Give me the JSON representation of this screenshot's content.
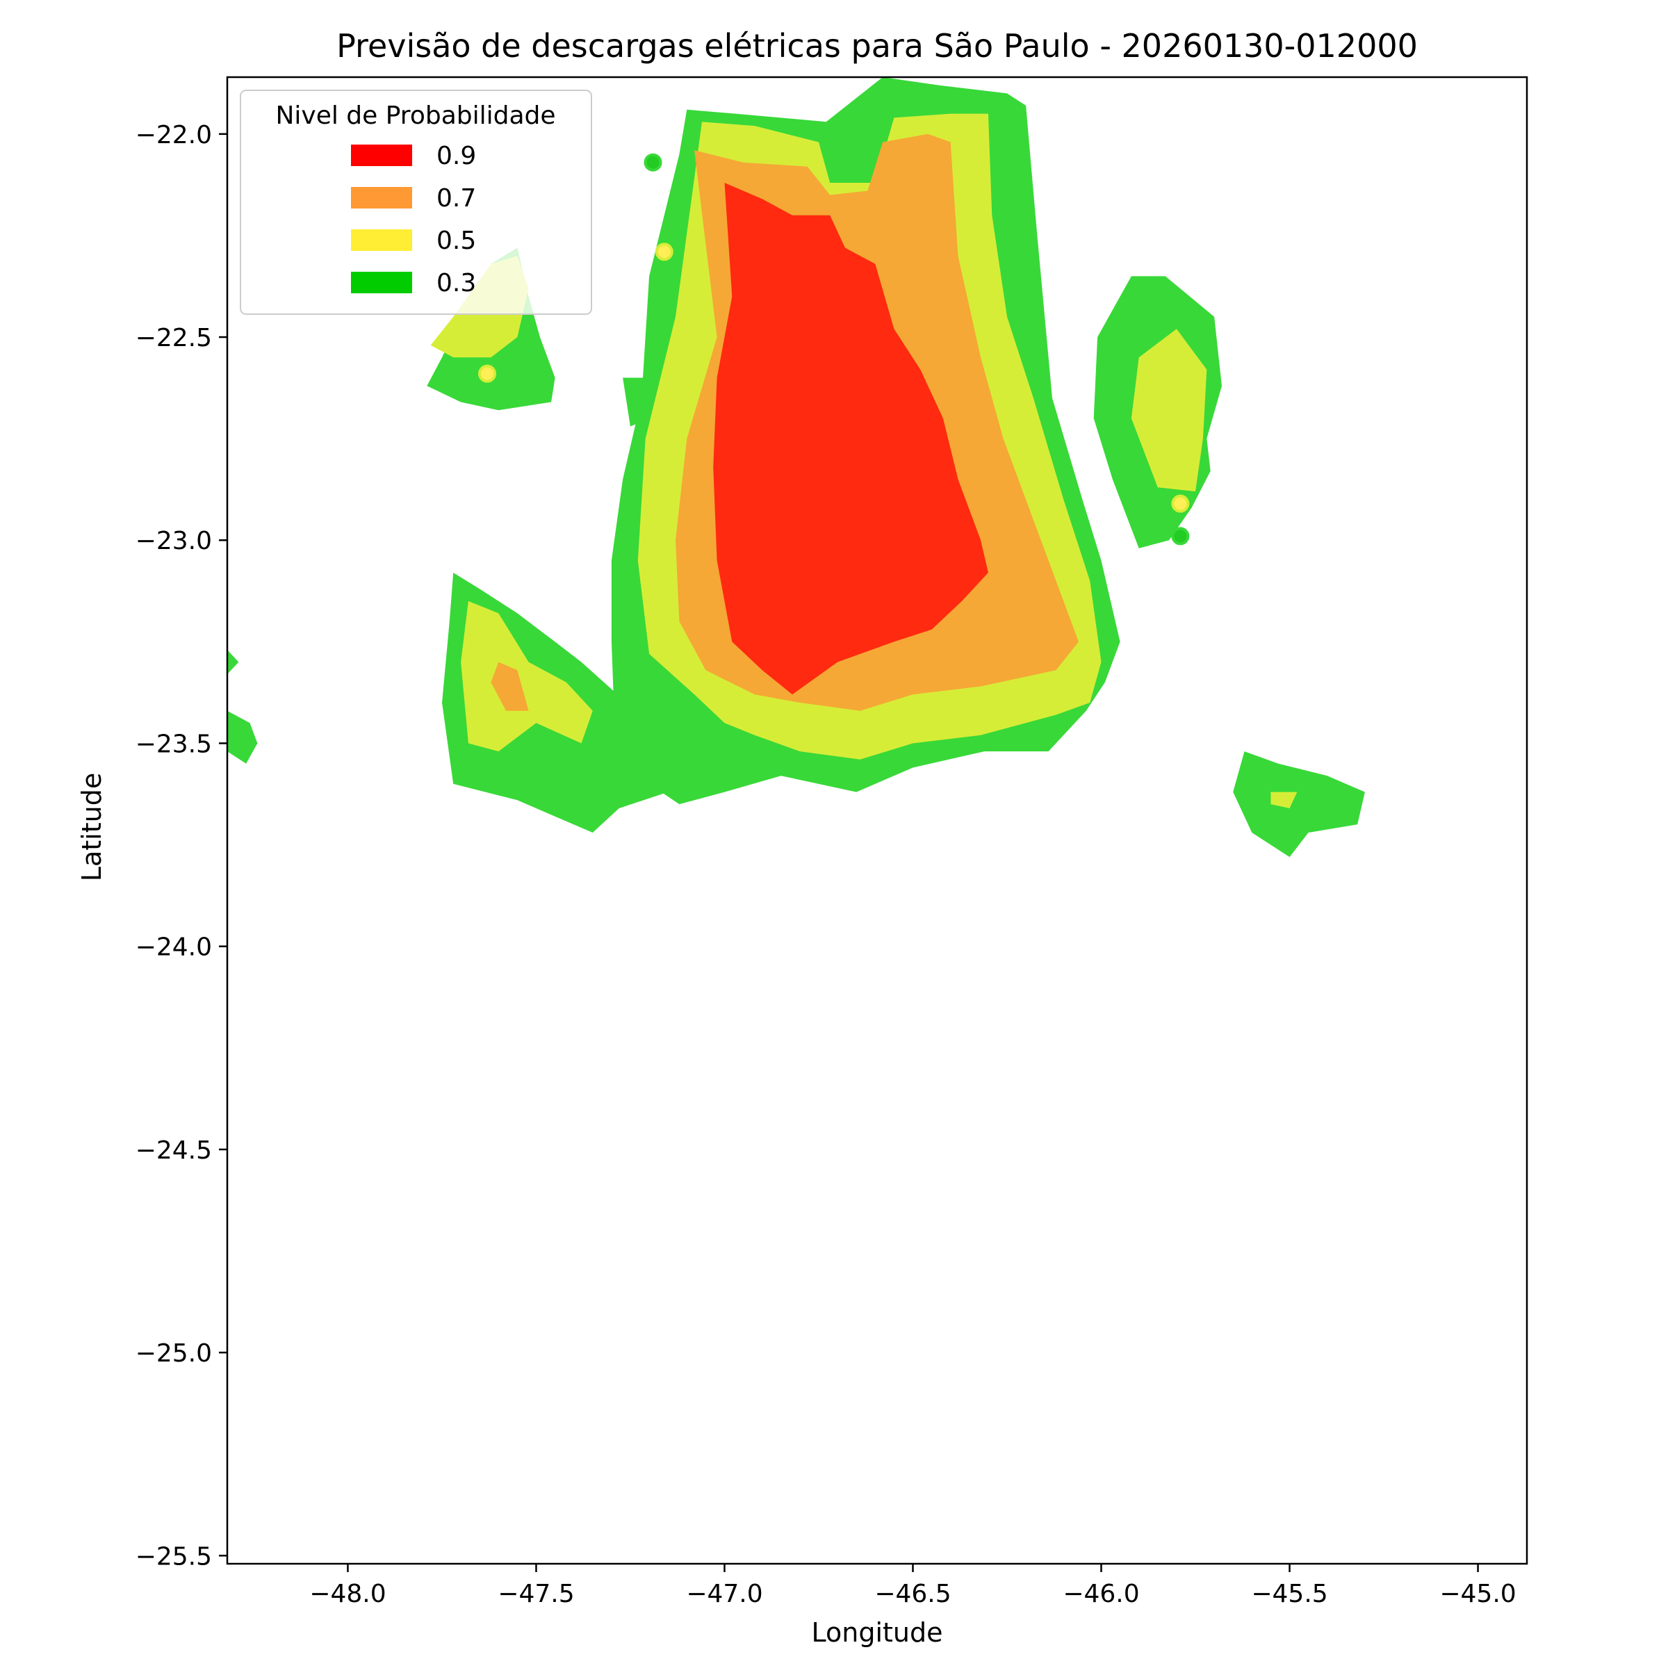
{
  "chart_data": {
    "type": "contour-map",
    "title": "Previsão de descargas elétricas para São Paulo - 20260130-012000",
    "xlabel": "Longitude",
    "ylabel": "Latitude",
    "xlim": [
      -48.32,
      -44.87
    ],
    "ylim": [
      -25.52,
      -21.86
    ],
    "xticks": [
      -48.0,
      -47.5,
      -47.0,
      -46.5,
      -46.0,
      -45.5,
      -45.0
    ],
    "xtick_labels": [
      "−48.0",
      "−47.5",
      "−47.0",
      "−46.5",
      "−46.0",
      "−45.5",
      "−45.0"
    ],
    "yticks": [
      -22.0,
      -22.5,
      -23.0,
      -23.5,
      -24.0,
      -24.5,
      -25.0,
      -25.5
    ],
    "ytick_labels": [
      "−22.0",
      "−22.5",
      "−23.0",
      "−23.5",
      "−24.0",
      "−24.5",
      "−25.0",
      "−25.5"
    ],
    "legend": {
      "title": "Nivel de Probabilidade",
      "placement": "top-left",
      "entries": [
        {
          "label": "0.9",
          "color": "#ff0000"
        },
        {
          "label": "0.7",
          "color": "#ff9933"
        },
        {
          "label": "0.5",
          "color": "#ffee33"
        },
        {
          "label": "0.3",
          "color": "#00cc00"
        }
      ]
    },
    "fill_colors": {
      "0.3": "#38d838",
      "0.5": "#d6ed38",
      "0.7": "#f5a835",
      "0.9": "#ff2a10"
    },
    "regions": [
      {
        "level": "0.3",
        "polygon": [
          [
            -47.12,
            -22.05
          ],
          [
            -47.1,
            -21.94
          ],
          [
            -46.97,
            -21.95
          ],
          [
            -46.73,
            -21.97
          ],
          [
            -46.58,
            -21.86
          ],
          [
            -46.43,
            -21.88
          ],
          [
            -46.25,
            -21.9
          ],
          [
            -46.2,
            -21.93
          ],
          [
            -46.17,
            -22.25
          ],
          [
            -46.13,
            -22.65
          ],
          [
            -46.05,
            -22.9
          ],
          [
            -46.0,
            -23.05
          ],
          [
            -45.95,
            -23.25
          ],
          [
            -45.99,
            -23.35
          ],
          [
            -46.04,
            -23.42
          ],
          [
            -46.14,
            -23.52
          ],
          [
            -46.31,
            -23.52
          ],
          [
            -46.5,
            -23.56
          ],
          [
            -46.65,
            -23.62
          ],
          [
            -46.85,
            -23.58
          ],
          [
            -47.0,
            -23.62
          ],
          [
            -47.12,
            -23.65
          ],
          [
            -47.2,
            -23.6
          ],
          [
            -47.28,
            -23.56
          ],
          [
            -47.29,
            -23.5
          ],
          [
            -47.3,
            -23.25
          ],
          [
            -47.3,
            -23.05
          ],
          [
            -47.27,
            -22.85
          ],
          [
            -47.22,
            -22.65
          ],
          [
            -47.2,
            -22.35
          ]
        ]
      },
      {
        "level": "0.3",
        "polygon": [
          [
            -46.01,
            -22.5
          ],
          [
            -45.92,
            -22.35
          ],
          [
            -45.83,
            -22.35
          ],
          [
            -45.7,
            -22.45
          ],
          [
            -45.68,
            -22.62
          ],
          [
            -45.72,
            -22.75
          ],
          [
            -45.71,
            -22.83
          ],
          [
            -45.76,
            -22.92
          ],
          [
            -45.82,
            -23.0
          ],
          [
            -45.9,
            -23.02
          ],
          [
            -45.97,
            -22.85
          ],
          [
            -46.02,
            -22.7
          ]
        ]
      },
      {
        "level": "0.3",
        "polygon": [
          [
            -47.79,
            -22.62
          ],
          [
            -47.75,
            -22.55
          ],
          [
            -47.7,
            -22.45
          ],
          [
            -47.62,
            -22.32
          ],
          [
            -47.55,
            -22.28
          ],
          [
            -47.52,
            -22.4
          ],
          [
            -47.49,
            -22.5
          ],
          [
            -47.45,
            -22.6
          ],
          [
            -47.46,
            -22.66
          ],
          [
            -47.6,
            -22.68
          ],
          [
            -47.7,
            -22.66
          ]
        ]
      },
      {
        "level": "0.3",
        "polygon": [
          [
            -47.27,
            -22.6
          ],
          [
            -47.2,
            -22.6
          ],
          [
            -47.2,
            -22.7
          ],
          [
            -47.25,
            -22.72
          ]
        ]
      },
      {
        "level": "0.3",
        "polygon": [
          [
            -47.72,
            -23.08
          ],
          [
            -47.65,
            -23.12
          ],
          [
            -47.55,
            -23.18
          ],
          [
            -47.45,
            -23.25
          ],
          [
            -47.38,
            -23.3
          ],
          [
            -47.32,
            -23.35
          ],
          [
            -47.2,
            -23.45
          ],
          [
            -47.15,
            -23.62
          ],
          [
            -47.28,
            -23.66
          ],
          [
            -47.35,
            -23.72
          ],
          [
            -47.45,
            -23.68
          ],
          [
            -47.55,
            -23.64
          ],
          [
            -47.72,
            -23.6
          ],
          [
            -47.75,
            -23.4
          ],
          [
            -47.73,
            -23.2
          ]
        ]
      },
      {
        "level": "0.3",
        "polygon": [
          [
            -48.32,
            -23.27
          ],
          [
            -48.29,
            -23.3
          ],
          [
            -48.32,
            -23.33
          ]
        ]
      },
      {
        "level": "0.3",
        "polygon": [
          [
            -48.32,
            -23.42
          ],
          [
            -48.26,
            -23.45
          ],
          [
            -48.24,
            -23.5
          ],
          [
            -48.27,
            -23.55
          ],
          [
            -48.32,
            -23.52
          ]
        ]
      },
      {
        "level": "0.3",
        "polygon": [
          [
            -45.62,
            -23.52
          ],
          [
            -45.53,
            -23.55
          ],
          [
            -45.4,
            -23.58
          ],
          [
            -45.3,
            -23.62
          ],
          [
            -45.32,
            -23.7
          ],
          [
            -45.45,
            -23.72
          ],
          [
            -45.5,
            -23.78
          ],
          [
            -45.6,
            -23.72
          ],
          [
            -45.65,
            -23.62
          ]
        ]
      },
      {
        "level": "0.5",
        "polygon": [
          [
            -47.06,
            -21.97
          ],
          [
            -46.92,
            -21.98
          ],
          [
            -46.75,
            -22.02
          ],
          [
            -46.72,
            -22.12
          ],
          [
            -46.6,
            -22.12
          ],
          [
            -46.55,
            -21.96
          ],
          [
            -46.4,
            -21.95
          ],
          [
            -46.3,
            -21.95
          ],
          [
            -46.29,
            -22.2
          ],
          [
            -46.25,
            -22.45
          ],
          [
            -46.18,
            -22.65
          ],
          [
            -46.1,
            -22.9
          ],
          [
            -46.03,
            -23.1
          ],
          [
            -46.0,
            -23.3
          ],
          [
            -46.03,
            -23.4
          ],
          [
            -46.12,
            -23.43
          ],
          [
            -46.32,
            -23.48
          ],
          [
            -46.5,
            -23.5
          ],
          [
            -46.64,
            -23.54
          ],
          [
            -46.8,
            -23.52
          ],
          [
            -46.92,
            -23.48
          ],
          [
            -47.0,
            -23.45
          ],
          [
            -47.08,
            -23.38
          ],
          [
            -47.2,
            -23.28
          ],
          [
            -47.23,
            -23.05
          ],
          [
            -47.21,
            -22.75
          ],
          [
            -47.13,
            -22.45
          ]
        ]
      },
      {
        "level": "0.5",
        "polygon": [
          [
            -45.9,
            -22.55
          ],
          [
            -45.8,
            -22.48
          ],
          [
            -45.72,
            -22.58
          ],
          [
            -45.73,
            -22.75
          ],
          [
            -45.75,
            -22.88
          ],
          [
            -45.85,
            -22.87
          ],
          [
            -45.92,
            -22.7
          ]
        ]
      },
      {
        "level": "0.5",
        "polygon": [
          [
            -47.68,
            -23.15
          ],
          [
            -47.6,
            -23.18
          ],
          [
            -47.52,
            -23.3
          ],
          [
            -47.42,
            -23.35
          ],
          [
            -47.35,
            -23.42
          ],
          [
            -47.38,
            -23.5
          ],
          [
            -47.5,
            -23.45
          ],
          [
            -47.6,
            -23.52
          ],
          [
            -47.68,
            -23.5
          ],
          [
            -47.7,
            -23.3
          ]
        ]
      },
      {
        "level": "0.5",
        "polygon": [
          [
            -45.55,
            -23.62
          ],
          [
            -45.48,
            -23.62
          ],
          [
            -45.5,
            -23.66
          ],
          [
            -45.55,
            -23.65
          ]
        ]
      },
      {
        "level": "0.5",
        "polygon": [
          [
            -47.78,
            -22.52
          ],
          [
            -47.72,
            -22.45
          ],
          [
            -47.62,
            -22.32
          ],
          [
            -47.55,
            -22.3
          ],
          [
            -47.52,
            -22.38
          ],
          [
            -47.55,
            -22.5
          ],
          [
            -47.62,
            -22.55
          ],
          [
            -47.72,
            -22.55
          ]
        ]
      },
      {
        "level": "0.7",
        "polygon": [
          [
            -47.08,
            -22.04
          ],
          [
            -46.95,
            -22.07
          ],
          [
            -46.78,
            -22.08
          ],
          [
            -46.72,
            -22.15
          ],
          [
            -46.62,
            -22.14
          ],
          [
            -46.58,
            -22.02
          ],
          [
            -46.46,
            -22.0
          ],
          [
            -46.4,
            -22.02
          ],
          [
            -46.38,
            -22.3
          ],
          [
            -46.32,
            -22.55
          ],
          [
            -46.26,
            -22.75
          ],
          [
            -46.18,
            -22.95
          ],
          [
            -46.1,
            -23.15
          ],
          [
            -46.06,
            -23.25
          ],
          [
            -46.12,
            -23.32
          ],
          [
            -46.32,
            -23.36
          ],
          [
            -46.5,
            -23.38
          ],
          [
            -46.64,
            -23.42
          ],
          [
            -46.8,
            -23.4
          ],
          [
            -46.92,
            -23.38
          ],
          [
            -47.05,
            -23.32
          ],
          [
            -47.12,
            -23.2
          ],
          [
            -47.13,
            -23.0
          ],
          [
            -47.1,
            -22.75
          ],
          [
            -47.02,
            -22.5
          ]
        ]
      },
      {
        "level": "0.7",
        "polygon": [
          [
            -47.6,
            -23.3
          ],
          [
            -47.55,
            -23.32
          ],
          [
            -47.52,
            -23.42
          ],
          [
            -47.58,
            -23.42
          ],
          [
            -47.62,
            -23.35
          ]
        ]
      },
      {
        "level": "0.9",
        "polygon": [
          [
            -47.0,
            -22.12
          ],
          [
            -46.9,
            -22.16
          ],
          [
            -46.82,
            -22.2
          ],
          [
            -46.72,
            -22.2
          ],
          [
            -46.68,
            -22.28
          ],
          [
            -46.6,
            -22.32
          ],
          [
            -46.55,
            -22.48
          ],
          [
            -46.48,
            -22.58
          ],
          [
            -46.42,
            -22.7
          ],
          [
            -46.38,
            -22.85
          ],
          [
            -46.32,
            -23.0
          ],
          [
            -46.3,
            -23.08
          ],
          [
            -46.37,
            -23.15
          ],
          [
            -46.45,
            -23.22
          ],
          [
            -46.55,
            -23.25
          ],
          [
            -46.7,
            -23.3
          ],
          [
            -46.82,
            -23.38
          ],
          [
            -46.9,
            -23.32
          ],
          [
            -46.98,
            -23.25
          ],
          [
            -47.02,
            -23.05
          ],
          [
            -47.03,
            -22.82
          ],
          [
            -47.02,
            -22.6
          ],
          [
            -46.98,
            -22.4
          ]
        ]
      }
    ],
    "points": [
      {
        "lon": -47.19,
        "lat": -22.07,
        "level": "0.3",
        "color": "#22cc22"
      },
      {
        "lon": -47.16,
        "lat": -22.29,
        "level": "0.5",
        "color": "#ffee55"
      },
      {
        "lon": -47.63,
        "lat": -22.59,
        "level": "0.5",
        "color": "#ffee55"
      },
      {
        "lon": -45.79,
        "lat": -22.91,
        "level": "0.5",
        "color": "#ffee55"
      },
      {
        "lon": -45.79,
        "lat": -22.99,
        "level": "0.3",
        "color": "#22cc22"
      }
    ]
  }
}
